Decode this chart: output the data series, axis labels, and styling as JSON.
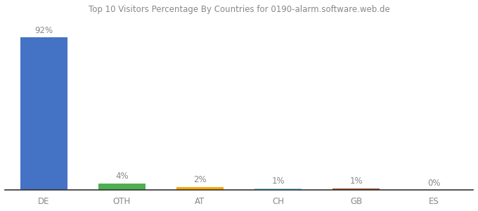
{
  "title": "Top 10 Visitors Percentage By Countries for 0190-alarm.software.web.de",
  "categories": [
    "DE",
    "OTH",
    "AT",
    "CH",
    "GB",
    "ES"
  ],
  "values": [
    92,
    4,
    2,
    1,
    1,
    0
  ],
  "labels": [
    "92%",
    "4%",
    "2%",
    "1%",
    "1%",
    "0%"
  ],
  "bar_colors": [
    "#4472C4",
    "#4CAF50",
    "#FFA500",
    "#87CEEB",
    "#A0522D",
    "#C0C0C0"
  ],
  "background_color": "#ffffff",
  "ylim": [
    0,
    105
  ],
  "bar_width": 0.6,
  "label_fontsize": 8.5,
  "tick_fontsize": 8.5,
  "title_fontsize": 8.5,
  "label_color": "#888888",
  "tick_color": "#888888"
}
